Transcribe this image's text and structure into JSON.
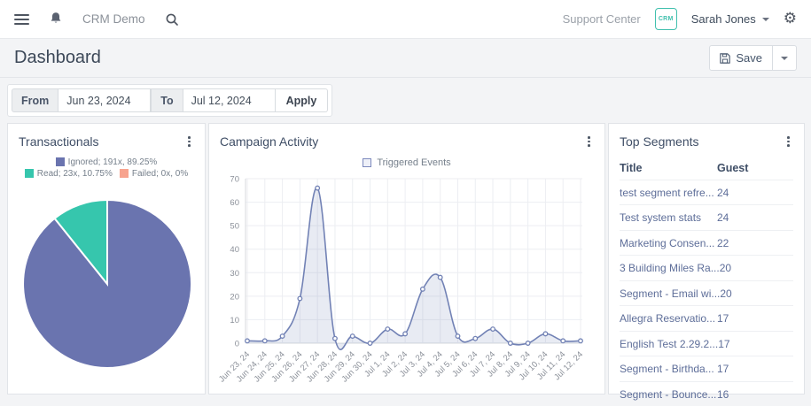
{
  "navbar": {
    "brand": "CRM Demo",
    "support_center": "Support Center",
    "avatar_text": "CRM",
    "user_name": "Sarah Jones"
  },
  "header": {
    "title": "Dashboard",
    "save_label": "Save"
  },
  "toolbar": {
    "from_label": "From",
    "from_value": "Jun 23, 2024",
    "to_label": "To",
    "to_value": "Jul 12, 2024",
    "apply_label": "Apply"
  },
  "panels": {
    "transactionals": {
      "title": "Transactionals",
      "legend": [
        {
          "label": "Ignored; 191x, 89.25%",
          "color": "#6a74af"
        },
        {
          "label": "Read; 23x, 10.75%",
          "color": "#36c6ad"
        },
        {
          "label": "Failed; 0x, 0%",
          "color": "#f7a38e"
        }
      ]
    },
    "campaign": {
      "title": "Campaign Activity",
      "legend_label": "Triggered Events"
    },
    "segments": {
      "title": "Top Segments",
      "columns": [
        "Title",
        "Guest"
      ],
      "rows": [
        {
          "title": "test segment refre...",
          "guest": "24"
        },
        {
          "title": "Test system stats",
          "guest": "24"
        },
        {
          "title": "Marketing Consen...",
          "guest": "22"
        },
        {
          "title": "3 Building Miles Ra...",
          "guest": "20"
        },
        {
          "title": "Segment - Email wi...",
          "guest": "20"
        },
        {
          "title": "Allegra Reservatio...",
          "guest": "17"
        },
        {
          "title": "English Test 2.29.2...",
          "guest": "17"
        },
        {
          "title": "Segment - Birthda...",
          "guest": "17"
        },
        {
          "title": "Segment - Bounce...",
          "guest": "16"
        }
      ]
    }
  },
  "chart_data": [
    {
      "type": "pie",
      "title": "Transactionals",
      "slices": [
        {
          "label": "Ignored",
          "count": "191x",
          "percent": 89.25,
          "color": "#6a74af"
        },
        {
          "label": "Read",
          "count": "23x",
          "percent": 10.75,
          "color": "#36c6ad"
        },
        {
          "label": "Failed",
          "count": "0x",
          "percent": 0,
          "color": "#f7a38e"
        }
      ],
      "start_angle": "top",
      "direction": "clockwise"
    },
    {
      "type": "area",
      "title": "Campaign Activity",
      "series": [
        {
          "name": "Triggered Events",
          "values": [
            1,
            1,
            3,
            19,
            66,
            2,
            3,
            0,
            6,
            4,
            23,
            28,
            3,
            2,
            6,
            0,
            0,
            4,
            1,
            1
          ]
        }
      ],
      "categories": [
        "Jun 23, 24",
        "Jun 24, 24",
        "Jun 25, 24",
        "Jun 26, 24",
        "Jun 27, 24",
        "Jun 28, 24",
        "Jun 29, 24",
        "Jun 30, 24",
        "Jul 1, 24",
        "Jul 2, 24",
        "Jul 3, 24",
        "Jul 4, 24",
        "Jul 5, 24",
        "Jul 6, 24",
        "Jul 7, 24",
        "Jul 8, 24",
        "Jul 9, 24",
        "Jul 10, 24",
        "Jul 11, 24",
        "Jul 12, 24"
      ],
      "ylim": [
        0,
        70
      ],
      "yticks": [
        0,
        10,
        20,
        30,
        40,
        50,
        60,
        70
      ],
      "grid": true,
      "legend_position": "top",
      "line_color": "#7282b5",
      "fill_color": "rgba(114,130,181,0.16)",
      "point_fill": "#ffffff"
    }
  ]
}
